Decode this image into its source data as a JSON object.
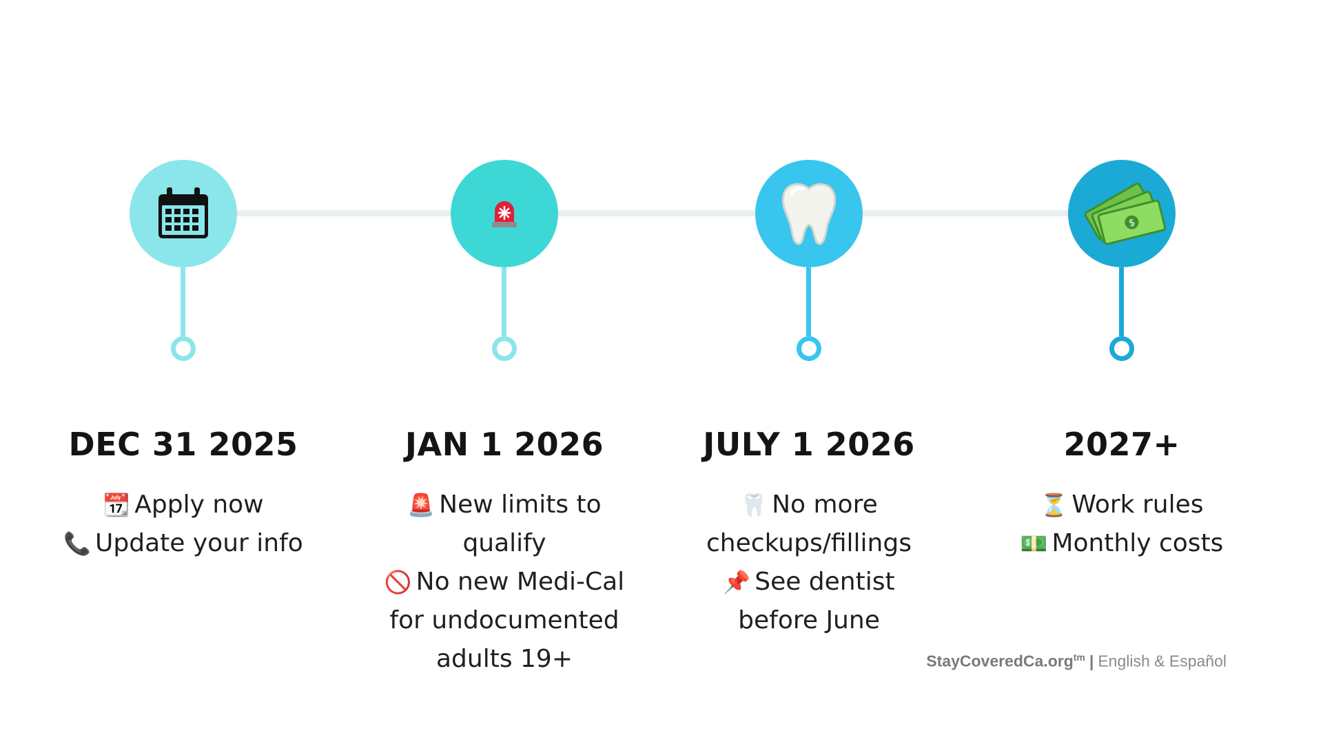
{
  "colors": {
    "line": "#e9eef1",
    "m1": "#8ae6ea",
    "m2": "#3dd8d6",
    "m3": "#38c6ee",
    "m4": "#1ba9d6"
  },
  "milestones": [
    {
      "icon": "calendar-icon",
      "date": "DEC 31 2025",
      "lines": [
        {
          "emoji": "📆",
          "text": "Apply now"
        },
        {
          "emoji": "📞",
          "text": "Update your info"
        }
      ]
    },
    {
      "icon": "siren-icon",
      "date": "JAN 1 2026",
      "lines": [
        {
          "emoji": "🚨",
          "text": "New limits to"
        },
        {
          "emoji": "",
          "text": "qualify"
        },
        {
          "emoji": "🚫",
          "text": "No new Medi-Cal"
        },
        {
          "emoji": "",
          "text": "for undocumented"
        },
        {
          "emoji": "",
          "text": "adults 19+"
        }
      ]
    },
    {
      "icon": "tooth-icon",
      "date": "JULY 1 2026",
      "lines": [
        {
          "emoji": "🦷",
          "text": "No more"
        },
        {
          "emoji": "",
          "text": "checkups/fillings"
        },
        {
          "emoji": "📌",
          "text": "See dentist"
        },
        {
          "emoji": "",
          "text": "before June"
        }
      ]
    },
    {
      "icon": "money-icon",
      "date": "2027+",
      "lines": [
        {
          "emoji": "⏳",
          "text": "Work rules"
        },
        {
          "emoji": "💵",
          "text": "Monthly costs"
        }
      ]
    }
  ],
  "footer": {
    "brand": "StayCoveredCa.org",
    "superscript": "tm",
    "separator": "|",
    "languages": "English & Español"
  }
}
